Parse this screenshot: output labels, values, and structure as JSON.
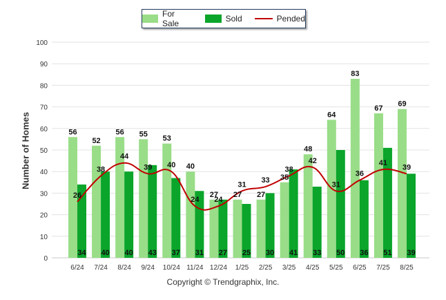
{
  "chart_data": {
    "type": "bar",
    "title": "",
    "xlabel": "",
    "ylabel": "Number of Homes",
    "ylim": [
      0,
      100
    ],
    "yticks": [
      0,
      10,
      20,
      30,
      40,
      50,
      60,
      70,
      80,
      90,
      100
    ],
    "grid": true,
    "legend_position": "top-center",
    "categories": [
      "6/24",
      "7/24",
      "8/24",
      "9/24",
      "10/24",
      "11/24",
      "12/24",
      "1/25",
      "2/25",
      "3/25",
      "4/25",
      "5/25",
      "6/25",
      "7/25",
      "8/25"
    ],
    "series": [
      {
        "name": "For Sale",
        "type": "bar",
        "color": "#99dd88",
        "values": [
          56,
          52,
          56,
          55,
          53,
          40,
          27,
          27,
          27,
          35,
          48,
          64,
          83,
          67,
          69
        ]
      },
      {
        "name": "Sold",
        "type": "bar",
        "color": "#0aa52a",
        "values": [
          34,
          40,
          40,
          43,
          37,
          31,
          27,
          25,
          30,
          41,
          33,
          50,
          36,
          51,
          39
        ]
      },
      {
        "name": "Pended",
        "type": "line",
        "color": "#c00000",
        "values": [
          26,
          38,
          44,
          39,
          40,
          24,
          24,
          31,
          33,
          38,
          42,
          31,
          36,
          41,
          39
        ]
      }
    ]
  },
  "footer": {
    "copyright": "Copyright © Trendgraphix, Inc."
  }
}
